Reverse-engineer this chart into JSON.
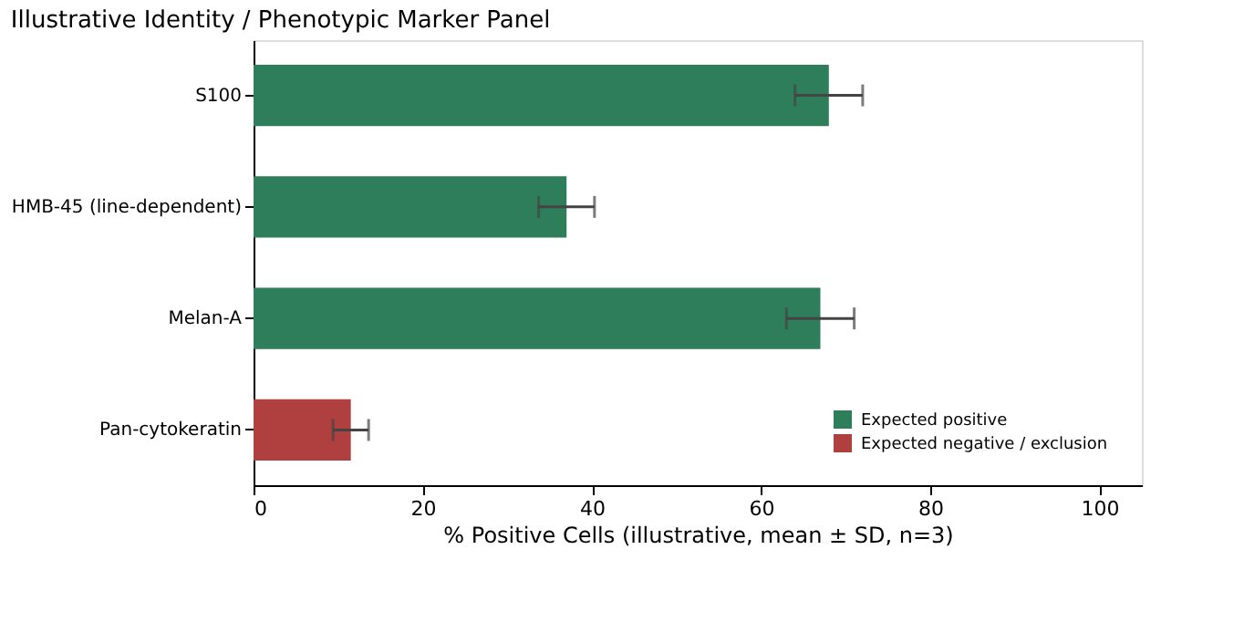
{
  "chart_data": {
    "type": "bar",
    "orientation": "horizontal",
    "title": "Illustrative Identity / Phenotypic Marker Panel",
    "xlabel": "% Positive Cells (illustrative, mean ± SD, n=3)",
    "categories": [
      "S100",
      "HMB-45 (line-dependent)",
      "Melan-A",
      "Pan-cytokeratin"
    ],
    "series": [
      {
        "name": "Expected positive",
        "color": "#2e7d5b",
        "values": [
          68,
          37,
          67,
          null
        ],
        "errors": [
          4,
          3.3,
          4,
          null
        ]
      },
      {
        "name": "Expected negative / exclusion",
        "color": "#b04040",
        "values": [
          null,
          null,
          null,
          11.5
        ],
        "errors": [
          null,
          null,
          null,
          2.1
        ]
      }
    ],
    "xlim": [
      0,
      105
    ],
    "xticks": [
      0,
      20,
      40,
      60,
      80,
      100
    ],
    "grid": false,
    "legend": "bottom right"
  }
}
